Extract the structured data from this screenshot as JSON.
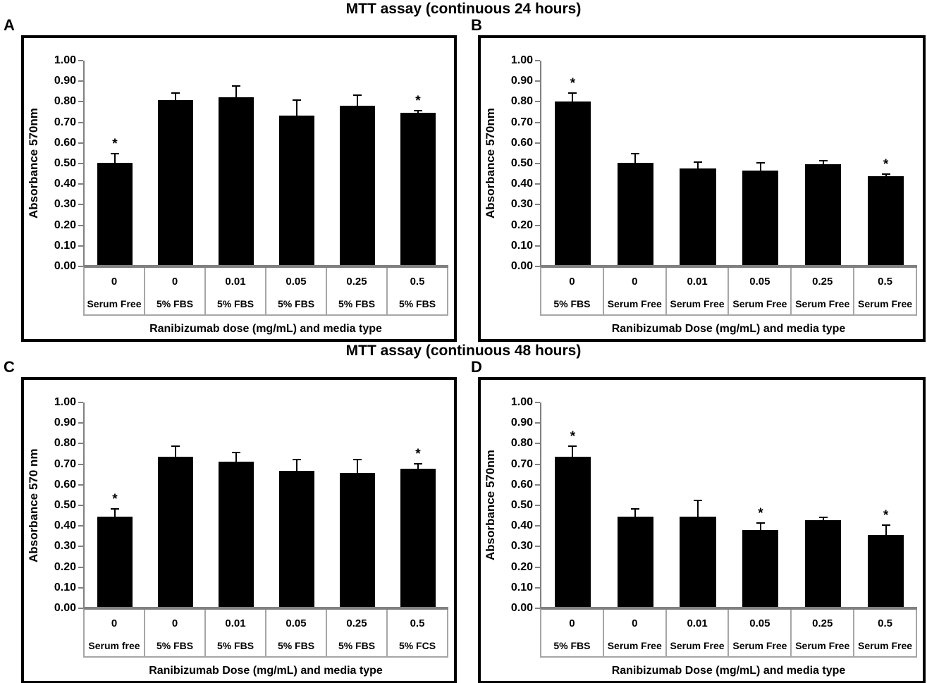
{
  "figure": {
    "section_titles": [
      "MTT assay (continuous 24 hours)",
      "MTT assay (continuous 48 hours)"
    ],
    "bar_color": "#000000",
    "axis_color": "#808080",
    "table_line_color": "#a6a6a6",
    "background": "#ffffff",
    "significance_marker": "*"
  },
  "chart_data": [
    {
      "type": "bar",
      "panel_label": "A",
      "section": 0,
      "title": "MTT assay (continuous 24 hours)",
      "ylabel": "Absorbance 570nm",
      "xlabel": "Ranibizumab dose (mg/mL) and media type",
      "ylim": [
        0.0,
        1.0
      ],
      "ytick_step": 0.1,
      "grid": false,
      "legend": "none",
      "categories_dose": [
        "0",
        "0",
        "0.01",
        "0.05",
        "0.25",
        "0.5"
      ],
      "categories_media": [
        "Serum Free",
        "5% FBS",
        "5% FBS",
        "5% FBS",
        "5% FBS",
        "5% FBS"
      ],
      "values": [
        0.495,
        0.8,
        0.815,
        0.725,
        0.775,
        0.74
      ],
      "errors": [
        0.05,
        0.04,
        0.06,
        0.08,
        0.055,
        0.015
      ],
      "significant": [
        true,
        false,
        false,
        false,
        false,
        true
      ]
    },
    {
      "type": "bar",
      "panel_label": "B",
      "section": 0,
      "title": "MTT assay (continuous 24 hours)",
      "ylabel": "Absorbance 570nm",
      "xlabel": "Ranibizumab Dose (mg/mL)  and media type",
      "ylim": [
        0.0,
        1.0
      ],
      "ytick_step": 0.1,
      "grid": false,
      "legend": "none",
      "categories_dose": [
        "0",
        "0",
        "0.01",
        "0.05",
        "0.25",
        "0.5"
      ],
      "categories_media": [
        "5% FBS",
        "Serum Free",
        "Serum Free",
        "Serum Free",
        "Serum Free",
        "Serum Free"
      ],
      "values": [
        0.795,
        0.495,
        0.47,
        0.46,
        0.49,
        0.43
      ],
      "errors": [
        0.045,
        0.05,
        0.035,
        0.04,
        0.02,
        0.015
      ],
      "significant": [
        true,
        false,
        false,
        false,
        false,
        true
      ]
    },
    {
      "type": "bar",
      "panel_label": "C",
      "section": 1,
      "title": "MTT assay (continuous 48 hours)",
      "ylabel": "Absorbance 570 nm",
      "xlabel": "Ranibizumab Dose (mg/mL) and media type",
      "ylim": [
        0.0,
        1.0
      ],
      "ytick_step": 0.1,
      "grid": false,
      "legend": "none",
      "categories_dose": [
        "0",
        "0",
        "0.01",
        "0.05",
        "0.25",
        "0.5"
      ],
      "categories_media": [
        "Serum free",
        "5% FBS",
        "5% FBS",
        "5% FBS",
        "5% FBS",
        "5% FCS"
      ],
      "values": [
        0.44,
        0.73,
        0.705,
        0.66,
        0.65,
        0.67
      ],
      "errors": [
        0.04,
        0.055,
        0.05,
        0.06,
        0.07,
        0.03
      ],
      "significant": [
        true,
        false,
        false,
        false,
        false,
        true
      ]
    },
    {
      "type": "bar",
      "panel_label": "D",
      "section": 1,
      "title": "MTT assay (continuous 48 hours)",
      "ylabel": "Absorbance 570nm",
      "xlabel": "Ranibizumab Dose (mg/mL) and media type",
      "ylim": [
        0.0,
        1.0
      ],
      "ytick_step": 0.1,
      "grid": false,
      "legend": "none",
      "categories_dose": [
        "0",
        "0",
        "0.01",
        "0.05",
        "0.25",
        "0.5"
      ],
      "categories_media": [
        "5% FBS",
        "Serum Free",
        "Serum Free",
        "Serum Free",
        "Serum Free",
        "Serum Free"
      ],
      "values": [
        0.73,
        0.44,
        0.44,
        0.375,
        0.42,
        0.35
      ],
      "errors": [
        0.055,
        0.04,
        0.08,
        0.035,
        0.02,
        0.05
      ],
      "significant": [
        true,
        false,
        false,
        true,
        false,
        true
      ]
    }
  ]
}
